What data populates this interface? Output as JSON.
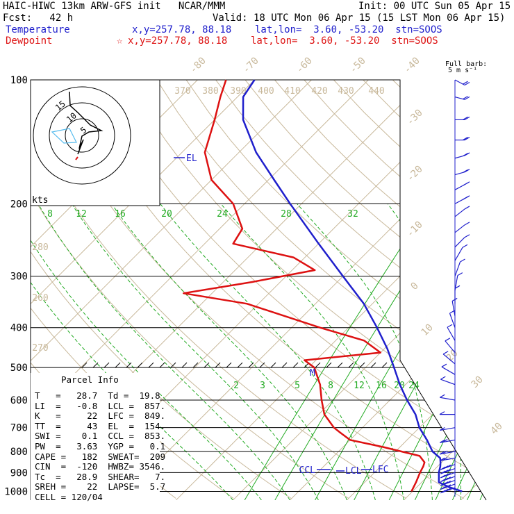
{
  "header": {
    "title": "HAIC-HIWC 13km ARW-GFS init   NCAR/MMM",
    "init": "Init: 00 UTC Sun 05 Apr 15",
    "fcst": "Fcst:   42 h",
    "valid": "Valid: 18 UTC Mon 06 Apr 15 (15 LST Mon 06 Apr 15)",
    "temp_label": "Temperature",
    "temp_info": "x,y=257.78, 88.18    lat,lon=  3.60, -53.20  stn=SOOS",
    "dew_label": "Dewpoint",
    "dew_star": "☆",
    "dew_info": "x,y=257.78, 88.18    lat,lon=  3.60, -53.20  stn=SOOS"
  },
  "colors": {
    "temperature": "#1f1fcc",
    "dewpoint": "#dd1111",
    "isotherm": "#c8b89a",
    "mixing_ratio": "#22aa22",
    "grid": "#000000",
    "wind_barb": "#1f1fcc"
  },
  "chart_data": {
    "type": "skew-t",
    "y_scale": "log pressure",
    "pressure_levels": [
      100,
      200,
      300,
      400,
      500,
      600,
      700,
      800,
      900,
      1000
    ],
    "temperature": {
      "name": "Temperature",
      "points": [
        [
          1000,
          28.7
        ],
        [
          975,
          25.5
        ],
        [
          950,
          23.0
        ],
        [
          920,
          22.0
        ],
        [
          900,
          21.3
        ],
        [
          870,
          20.5
        ],
        [
          850,
          19.8
        ],
        [
          830,
          19.0
        ],
        [
          800,
          16.5
        ],
        [
          750,
          13.5
        ],
        [
          700,
          10.0
        ],
        [
          650,
          7.0
        ],
        [
          600,
          3.0
        ],
        [
          550,
          -1.0
        ],
        [
          500,
          -5.0
        ],
        [
          450,
          -9.5
        ],
        [
          400,
          -15.0
        ],
        [
          350,
          -21.5
        ],
        [
          300,
          -30.0
        ],
        [
          250,
          -40.0
        ],
        [
          200,
          -52.0
        ],
        [
          175,
          -59.0
        ],
        [
          150,
          -67.0
        ],
        [
          125,
          -75.0
        ],
        [
          110,
          -79.0
        ],
        [
          100,
          -80.0
        ]
      ]
    },
    "dewpoint": {
      "name": "Dewpoint",
      "points": [
        [
          1000,
          19.8
        ],
        [
          950,
          19.0
        ],
        [
          900,
          18.0
        ],
        [
          870,
          17.5
        ],
        [
          850,
          17.0
        ],
        [
          820,
          15.0
        ],
        [
          780,
          7.0
        ],
        [
          750,
          0.0
        ],
        [
          720,
          -3.0
        ],
        [
          700,
          -5.0
        ],
        [
          650,
          -9.0
        ],
        [
          600,
          -12.0
        ],
        [
          550,
          -15.0
        ],
        [
          500,
          -19.0
        ],
        [
          480,
          -22.0
        ],
        [
          460,
          -10.0
        ],
        [
          430,
          -15.0
        ],
        [
          400,
          -25.0
        ],
        [
          350,
          -42.0
        ],
        [
          330,
          -55.0
        ],
        [
          310,
          -45.0
        ],
        [
          290,
          -36.0
        ],
        [
          270,
          -42.0
        ],
        [
          250,
          -55.0
        ],
        [
          230,
          -56.0
        ],
        [
          200,
          -62.0
        ],
        [
          175,
          -70.0
        ],
        [
          150,
          -76.0
        ],
        [
          125,
          -80.0
        ],
        [
          110,
          -83.0
        ],
        [
          100,
          -85.0
        ]
      ]
    },
    "isotherm_labels": [
      "-80",
      "-70",
      "-60",
      "-50",
      "-40",
      "-30",
      "-20",
      "-10",
      "0",
      "10",
      "20",
      "30",
      "40"
    ],
    "theta_labels": [
      "370",
      "380",
      "390",
      "400",
      "410",
      "420",
      "430",
      "440",
      "280",
      "260",
      "270"
    ],
    "mixing_ratio_top": [
      "8",
      "12",
      "16",
      "20",
      "24",
      "28",
      "32"
    ],
    "mixing_ratio_bottom": [
      "2",
      "3",
      "5",
      "8",
      "12",
      "16",
      "20",
      "24"
    ],
    "level_labels": [
      "EL",
      "CCL",
      "LCL",
      "LFC",
      "M"
    ],
    "hodograph": {
      "rings": [
        "5",
        "10",
        "15"
      ],
      "units": "kts"
    },
    "barb_legend": [
      "Full barb:",
      "5 m s⁻¹"
    ],
    "wind_barbs": [
      {
        "p": 100,
        "dir": 290,
        "spd": 10
      },
      {
        "p": 110,
        "dir": 280,
        "spd": 10
      },
      {
        "p": 125,
        "dir": 270,
        "spd": 10
      },
      {
        "p": 140,
        "dir": 270,
        "spd": 10
      },
      {
        "p": 155,
        "dir": 260,
        "spd": 10
      },
      {
        "p": 170,
        "dir": 260,
        "spd": 10
      },
      {
        "p": 185,
        "dir": 250,
        "spd": 10
      },
      {
        "p": 200,
        "dir": 250,
        "spd": 10
      },
      {
        "p": 215,
        "dir": 240,
        "spd": 5
      },
      {
        "p": 235,
        "dir": 240,
        "spd": 5
      },
      {
        "p": 255,
        "dir": 230,
        "spd": 5
      },
      {
        "p": 275,
        "dir": 210,
        "spd": 5
      },
      {
        "p": 300,
        "dir": 200,
        "spd": 5
      },
      {
        "p": 325,
        "dir": 190,
        "spd": 5
      },
      {
        "p": 350,
        "dir": 180,
        "spd": 5
      },
      {
        "p": 375,
        "dir": 170,
        "spd": 5
      },
      {
        "p": 400,
        "dir": 160,
        "spd": 5
      },
      {
        "p": 430,
        "dir": 150,
        "spd": 5
      },
      {
        "p": 460,
        "dir": 140,
        "spd": 5
      },
      {
        "p": 490,
        "dir": 130,
        "spd": 5
      },
      {
        "p": 520,
        "dir": 120,
        "spd": 5
      },
      {
        "p": 550,
        "dir": 110,
        "spd": 5
      },
      {
        "p": 600,
        "dir": 100,
        "spd": 5
      },
      {
        "p": 650,
        "dir": 90,
        "spd": 5
      },
      {
        "p": 700,
        "dir": 80,
        "spd": 5
      },
      {
        "p": 750,
        "dir": 80,
        "spd": 10
      },
      {
        "p": 800,
        "dir": 80,
        "spd": 10
      },
      {
        "p": 830,
        "dir": 80,
        "spd": 10
      },
      {
        "p": 860,
        "dir": 70,
        "spd": 15
      },
      {
        "p": 880,
        "dir": 70,
        "spd": 15
      },
      {
        "p": 900,
        "dir": 70,
        "spd": 15
      },
      {
        "p": 920,
        "dir": 70,
        "spd": 15
      },
      {
        "p": 940,
        "dir": 70,
        "spd": 15
      },
      {
        "p": 960,
        "dir": 70,
        "spd": 15
      },
      {
        "p": 980,
        "dir": 70,
        "spd": 15
      }
    ]
  },
  "parcel_info": {
    "title": "Parcel Info",
    "rows": [
      "T   =   28.7  Td =  19.8",
      "LI  =   -0.8  LCL =  857.",
      "K   =     22  LFC =  849.",
      "TT  =     43  EL  =  154.",
      "SWI =    0.1  CCL =  853.",
      "PW  =   3.63  YGP =   0.1",
      "CAPE =   182  SWEAT=  209",
      "CIN  =  -120  HWBZ= 3546.",
      "Tc  =   28.9  SHEAR=   7.",
      "SREH =    22  LAPSE=  5.7",
      "CELL = 120/04"
    ]
  }
}
